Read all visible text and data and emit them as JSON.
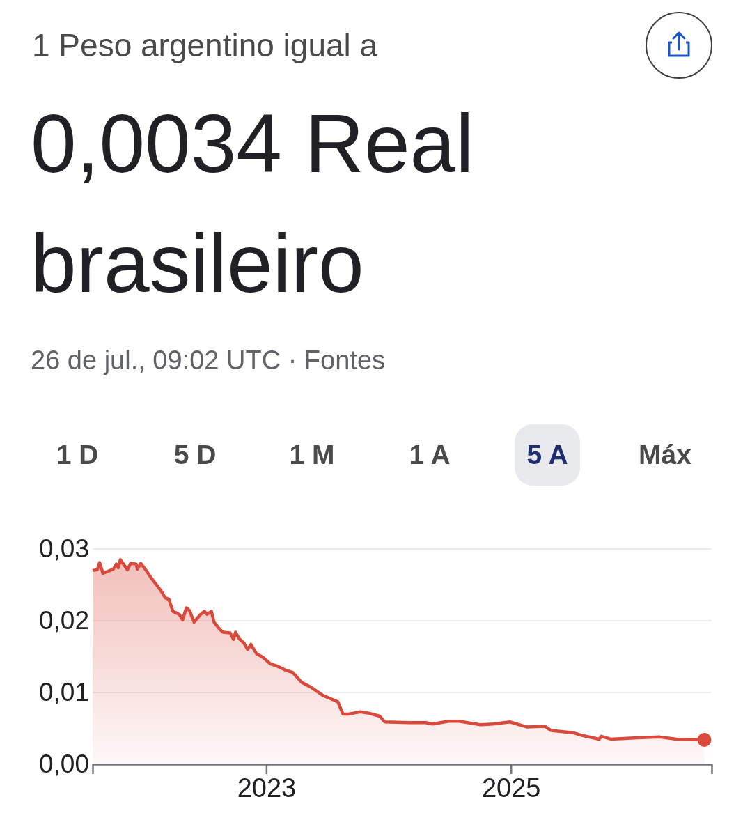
{
  "chart_data": {
    "type": "area",
    "title": "1 Peso argentino igual a",
    "subtitle": "0,0034 Real brasileiro",
    "annotations": [
      "26 de jul., 09:02 UTC · Fontes",
      "1 D",
      "5 D",
      "1 M",
      "1 A",
      "5 A",
      "Máx"
    ],
    "x": [
      "2021-07-31",
      "2021-08-14",
      "2021-08-21",
      "2021-08-31",
      "2021-10-01",
      "2021-10-10",
      "2021-10-16",
      "2021-10-22",
      "2021-11-12",
      "2021-11-22",
      "2021-12-08",
      "2021-12-12",
      "2021-12-22",
      "2022-01-04",
      "2022-01-23",
      "2022-02-12",
      "2022-02-23",
      "2022-03-05",
      "2022-03-16",
      "2022-03-28",
      "2022-04-16",
      "2022-04-26",
      "2022-05-07",
      "2022-05-17",
      "2022-05-30",
      "2022-06-17",
      "2022-06-30",
      "2022-07-08",
      "2022-07-21",
      "2022-07-29",
      "2022-08-15",
      "2022-08-25",
      "2022-09-15",
      "2022-09-25",
      "2022-10-01",
      "2022-10-12",
      "2022-10-26",
      "2022-11-06",
      "2022-11-16",
      "2022-12-03",
      "2022-12-22",
      "2023-01-13",
      "2023-02-01",
      "2023-02-28",
      "2023-03-21",
      "2023-04-17",
      "2023-05-16",
      "2023-06-19",
      "2023-07-09",
      "2023-08-03",
      "2023-08-18",
      "2023-09-04",
      "2023-10-09",
      "2023-11-05",
      "2023-12-06",
      "2023-12-21",
      "2024-03-03",
      "2024-04-22",
      "2024-05-12",
      "2024-06-29",
      "2024-07-30",
      "2024-10-03",
      "2024-11-09",
      "2024-12-29",
      "2025-02-17",
      "2025-04-12",
      "2025-05-01",
      "2025-07-05",
      "2025-08-03",
      "2025-09-22",
      "2025-09-28",
      "2025-10-27",
      "2026-01-14",
      "2026-03-22",
      "2026-05-11",
      "2026-08-02"
    ],
    "series": [
      {
        "color": "#d94a3d",
        "values": [
          0.027,
          0.0271,
          0.0281,
          0.0266,
          0.0272,
          0.0279,
          0.0274,
          0.0285,
          0.0271,
          0.028,
          0.0279,
          0.0272,
          0.028,
          0.0272,
          0.0259,
          0.0247,
          0.024,
          0.0232,
          0.023,
          0.0213,
          0.0209,
          0.0201,
          0.0218,
          0.0214,
          0.0198,
          0.0208,
          0.0213,
          0.0209,
          0.0213,
          0.0198,
          0.0188,
          0.0184,
          0.0183,
          0.0174,
          0.0184,
          0.0175,
          0.0169,
          0.016,
          0.0167,
          0.0154,
          0.0149,
          0.014,
          0.0137,
          0.0131,
          0.0128,
          0.0114,
          0.0107,
          0.0096,
          0.0092,
          0.0087,
          0.007,
          0.007,
          0.0073,
          0.0071,
          0.0067,
          0.0059,
          0.0058,
          0.0058,
          0.0056,
          0.006,
          0.006,
          0.0055,
          0.0056,
          0.0059,
          0.0052,
          0.0053,
          0.0047,
          0.0044,
          0.004,
          0.0035,
          0.0039,
          0.0035,
          0.0037,
          0.0038,
          0.0035,
          0.0034
        ]
      }
    ],
    "xlim": [
      "2021-07-31",
      "2026-08-24"
    ],
    "xticks": [
      {
        "value": "2023-01-01",
        "label": "2023"
      },
      {
        "value": "2025-01-01",
        "label": "2025"
      }
    ],
    "ylim": [
      0,
      0.03
    ],
    "yticks": [
      {
        "value": 0,
        "label": "0,00"
      },
      {
        "value": 0.01,
        "label": "0,01"
      },
      {
        "value": 0.02,
        "label": "0,02"
      },
      {
        "value": 0.03,
        "label": "0,03"
      }
    ],
    "grid": "y"
  }
}
